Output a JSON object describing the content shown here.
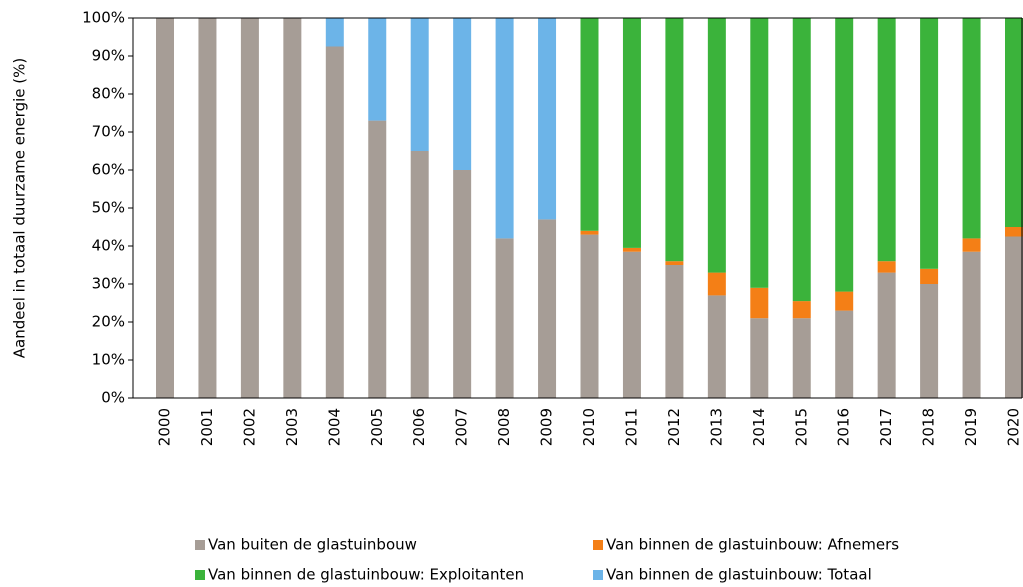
{
  "chart_data": {
    "type": "stacked_bar",
    "y_label": "Aandeel in totaal duurzame energie (%)",
    "categories": [
      "2000",
      "2001",
      "2002",
      "2003",
      "2004",
      "2005",
      "2006",
      "2007",
      "2008",
      "2009",
      "2010",
      "2011",
      "2012",
      "2013",
      "2014",
      "2015",
      "2016",
      "2017",
      "2018",
      "2019",
      "2020"
    ],
    "series": [
      {
        "name": "Van buiten de glastuinbouw",
        "color": "#a69d96",
        "values": [
          100,
          100,
          100,
          100,
          92.5,
          73,
          65,
          60,
          42,
          47,
          43,
          38.5,
          35,
          27,
          21,
          21,
          23,
          33,
          30,
          38.5,
          42.5
        ]
      },
      {
        "name": "Van binnen de glastuinbouw: Afnemers",
        "color": "#f47f16",
        "values": [
          0,
          0,
          0,
          0,
          0,
          0,
          0,
          0,
          0,
          0,
          1,
          1,
          1,
          6,
          8,
          4.5,
          5,
          3,
          4,
          3.5,
          2.5
        ]
      },
      {
        "name": "Van binnen de glastuinbouw: Exploitanten",
        "color": "#3bb33b",
        "values": [
          0,
          0,
          0,
          0,
          0,
          0,
          0,
          0,
          0,
          0,
          56,
          60.5,
          64,
          67,
          71,
          74.5,
          72,
          64,
          66,
          58,
          55
        ]
      },
      {
        "name": "Van binnen de glastuinbouw: Totaal",
        "color": "#6cb4e8",
        "values": [
          0,
          0,
          0,
          0,
          7.5,
          27,
          35,
          40,
          58,
          53,
          0,
          0,
          0,
          0,
          0,
          0,
          0,
          0,
          0,
          0,
          0
        ]
      }
    ],
    "ylim": [
      0,
      100
    ],
    "yticks": [
      {
        "value": 0,
        "label": "0%"
      },
      {
        "value": 10,
        "label": "10%"
      },
      {
        "value": 20,
        "label": "20%"
      },
      {
        "value": 30,
        "label": "30%"
      },
      {
        "value": 40,
        "label": "40%"
      },
      {
        "value": 50,
        "label": "50%"
      },
      {
        "value": 60,
        "label": "60%"
      },
      {
        "value": 70,
        "label": "70%"
      },
      {
        "value": 80,
        "label": "80%"
      },
      {
        "value": 90,
        "label": "90%"
      },
      {
        "value": 100,
        "label": "100%"
      }
    ],
    "grid": false
  }
}
